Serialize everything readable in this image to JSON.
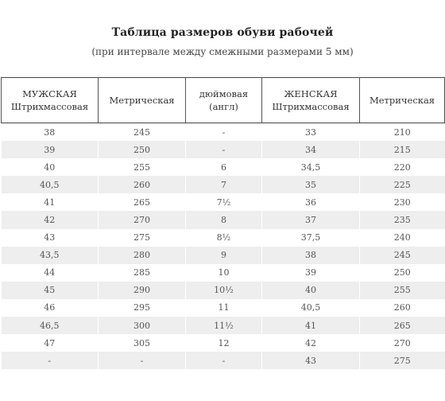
{
  "title": "Таблица размеров обуви рабочей",
  "subtitle": "(при интервале между смежными размерами 5 мм)",
  "table": {
    "headers": [
      [
        "МУЖСКАЯ",
        "Штрихмассовая"
      ],
      [
        "Метрическая"
      ],
      [
        "дюймовая",
        "(англ)"
      ],
      [
        "ЖЕНСКАЯ",
        "Штрихмассовая"
      ],
      [
        "Метрическая"
      ]
    ],
    "rows": [
      [
        "38",
        "245",
        "-",
        "33",
        "210"
      ],
      [
        "39",
        "250",
        "-",
        "34",
        "215"
      ],
      [
        "40",
        "255",
        "6",
        "34,5",
        "220"
      ],
      [
        "40,5",
        "260",
        "7",
        "35",
        "225"
      ],
      [
        "41",
        "265",
        "7½",
        "36",
        "230"
      ],
      [
        "42",
        "270",
        "8",
        "37",
        "235"
      ],
      [
        "43",
        "275",
        "8½",
        "37,5",
        "240"
      ],
      [
        "43,5",
        "280",
        "9",
        "38",
        "245"
      ],
      [
        "44",
        "285",
        "10",
        "39",
        "250"
      ],
      [
        "45",
        "290",
        "10½",
        "40",
        "255"
      ],
      [
        "46",
        "295",
        "11",
        "40,5",
        "260"
      ],
      [
        "46,5",
        "300",
        "11½",
        "41",
        "265"
      ],
      [
        "47",
        "305",
        "12",
        "42",
        "270"
      ],
      [
        "-",
        "-",
        "-",
        "43",
        "275"
      ]
    ]
  }
}
